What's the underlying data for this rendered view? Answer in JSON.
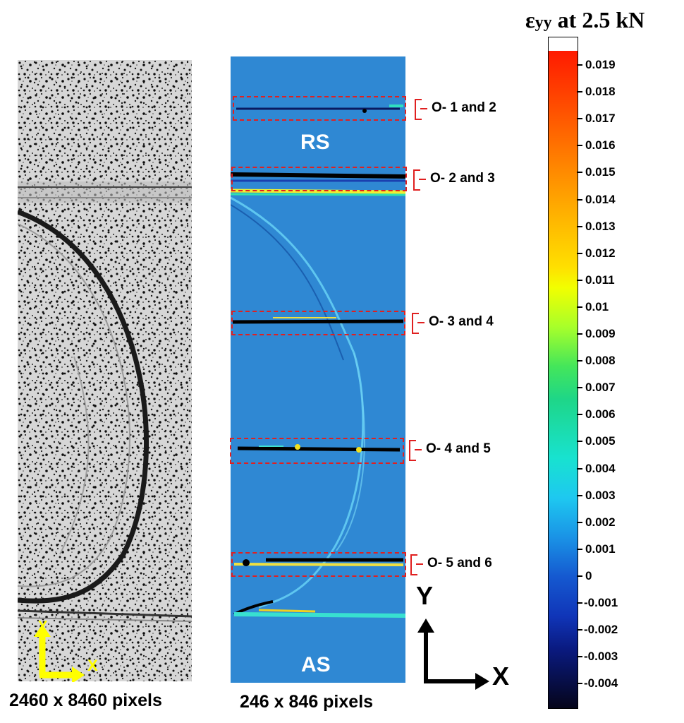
{
  "figure": {
    "left_panel_caption": "2460 x 8460 pixels",
    "right_panel_caption": "246 x 846 pixels",
    "region_top": "RS",
    "region_bottom": "AS",
    "speckle_axis": {
      "y": "Y",
      "x": "X",
      "color": "#ffff00"
    },
    "big_axis": {
      "y": "Y",
      "x": "X"
    },
    "roi_labels": [
      "O- 1 and 2",
      "O- 2 and 3",
      "O- 3 and 4",
      "O- 4 and 5",
      "O- 5 and 6"
    ],
    "roi_box_color": "#e02020"
  },
  "colorbar": {
    "title_symbol": "ε",
    "title_sub": "yy",
    "title_rest": " at 2.5 kN",
    "ticks": [
      "0.019",
      "0.018",
      "0.017",
      "0.016",
      "0.015",
      "0.014",
      "0.013",
      "0.012",
      "0.011",
      "0.01",
      "0.009",
      "0.008",
      "0.007",
      "0.006",
      "0.005",
      "0.004",
      "0.003",
      "0.002",
      "0.001",
      "0",
      "-0.001",
      "-0.002",
      "-0.003",
      "-0.004"
    ]
  }
}
